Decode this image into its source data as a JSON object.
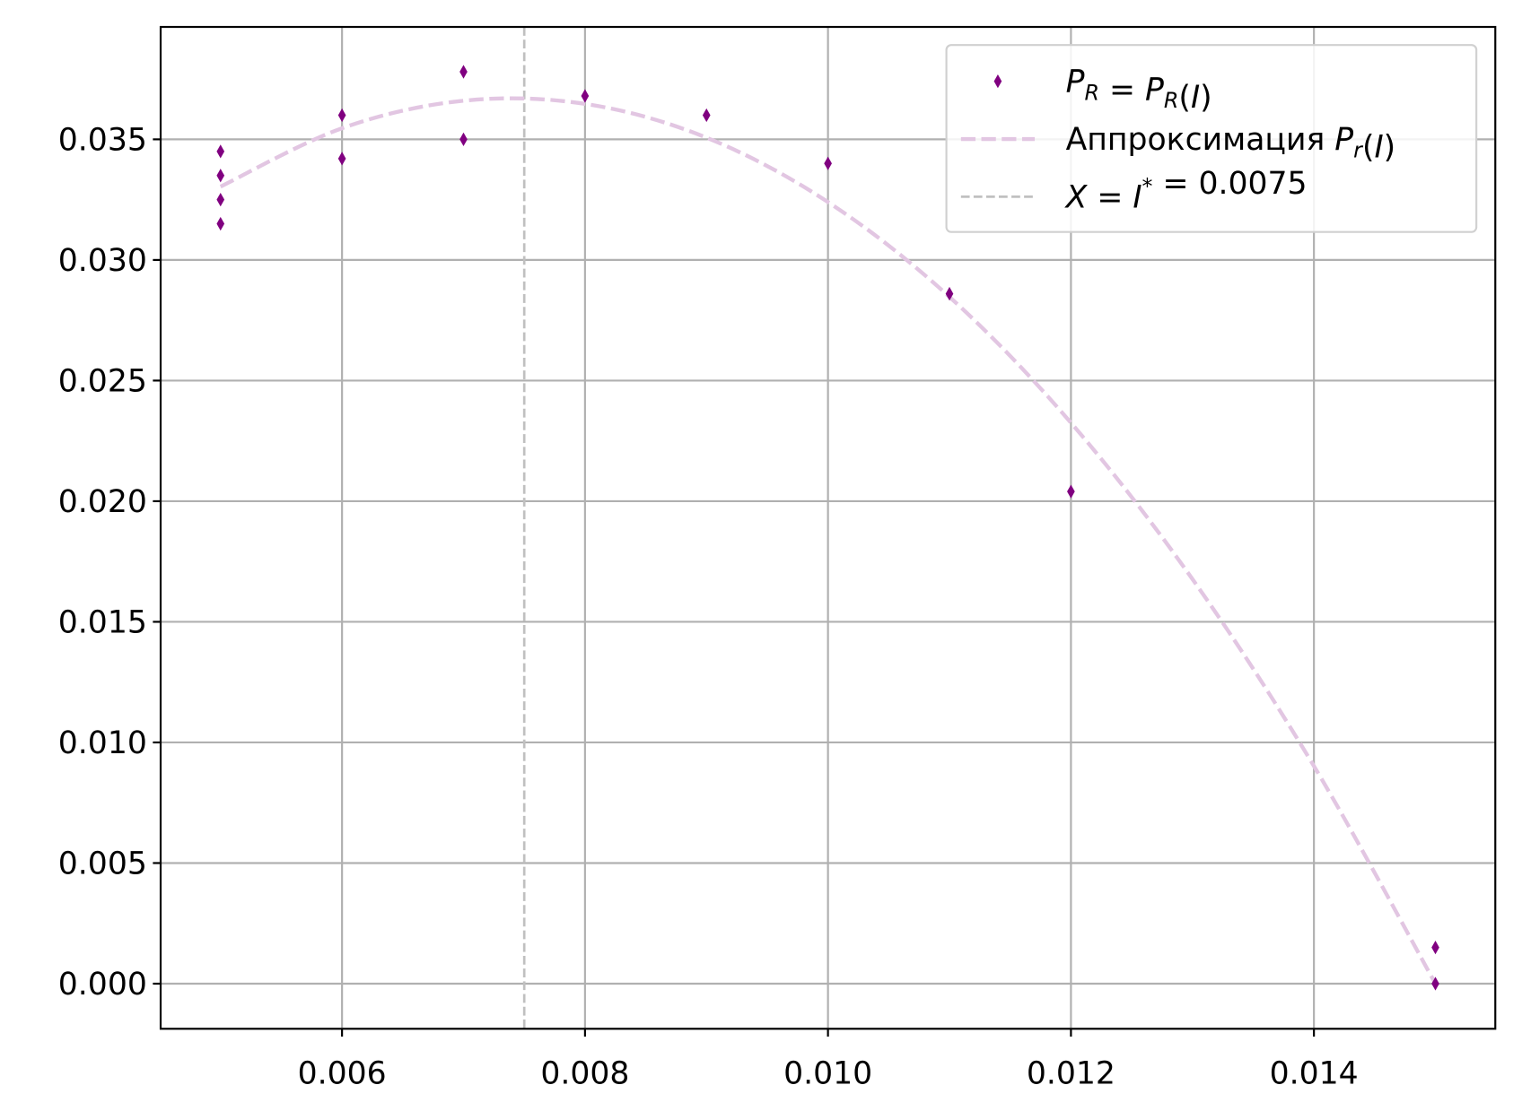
{
  "chart_data": {
    "type": "scatter",
    "title": "",
    "xlabel": "",
    "ylabel": "",
    "xlim": [
      0.004507,
      0.015493
    ],
    "ylim": [
      -0.00187,
      0.03966
    ],
    "grid": true,
    "legend_placement": "upper right",
    "x_ticks": [
      "0.006",
      "0.008",
      "0.010",
      "0.012",
      "0.014"
    ],
    "x_tick_values": [
      0.006,
      0.008,
      0.01,
      0.012,
      0.014
    ],
    "y_ticks": [
      "0.000",
      "0.005",
      "0.010",
      "0.015",
      "0.020",
      "0.025",
      "0.030",
      "0.035"
    ],
    "y_tick_values": [
      0,
      0.005,
      0.01,
      0.015,
      0.02,
      0.025,
      0.03,
      0.035
    ],
    "series": [
      {
        "name": "P_R = P_R(I)",
        "kind": "scatter",
        "marker": "thin-diamond",
        "color": "#800080",
        "x": [
          0.005,
          0.005,
          0.005,
          0.005,
          0.006,
          0.006,
          0.007,
          0.007,
          0.008,
          0.009,
          0.01,
          0.011,
          0.012,
          0.015,
          0.015
        ],
        "y": [
          0.0345,
          0.0335,
          0.0325,
          0.0315,
          0.036,
          0.0342,
          0.0378,
          0.035,
          0.0368,
          0.036,
          0.034,
          0.0286,
          0.0204,
          0.0015,
          0.0
        ]
      },
      {
        "name": "Аппроксимация P_r(I)",
        "kind": "line",
        "style": "dashed",
        "color": "#e2c6e2",
        "x": [
          0.005,
          0.006,
          0.007,
          0.008,
          0.009,
          0.01,
          0.011,
          0.012,
          0.013,
          0.014,
          0.015
        ],
        "y": [
          0.03304,
          0.03546,
          0.0366,
          0.03647,
          0.03507,
          0.0324,
          0.02847,
          0.02325,
          0.01677,
          0.00902,
          0.0
        ]
      },
      {
        "name": "X = I* = 0.0075",
        "kind": "vline",
        "style": "dashed",
        "color": "#c0c0c0",
        "x": 0.0075
      }
    ],
    "legend": [
      [
        {
          "t": "P",
          "i": true
        },
        {
          "t": "R",
          "sub": true,
          "i": true
        },
        {
          "t": " = "
        },
        {
          "t": "P",
          "i": true
        },
        {
          "t": "R",
          "sub": true,
          "i": true
        },
        {
          "t": "("
        },
        {
          "t": "I",
          "i": true
        },
        {
          "t": ")"
        }
      ],
      [
        {
          "t": "Аппроксимация "
        },
        {
          "t": "P",
          "i": true
        },
        {
          "t": "r",
          "sub": true,
          "i": true
        },
        {
          "t": "("
        },
        {
          "t": "I",
          "i": true
        },
        {
          "t": ")"
        }
      ],
      [
        {
          "t": "X",
          "i": true
        },
        {
          "t": " = "
        },
        {
          "t": "I",
          "i": true
        },
        {
          "t": "*",
          "sup": true
        },
        {
          "t": " = 0.0075"
        }
      ]
    ]
  }
}
